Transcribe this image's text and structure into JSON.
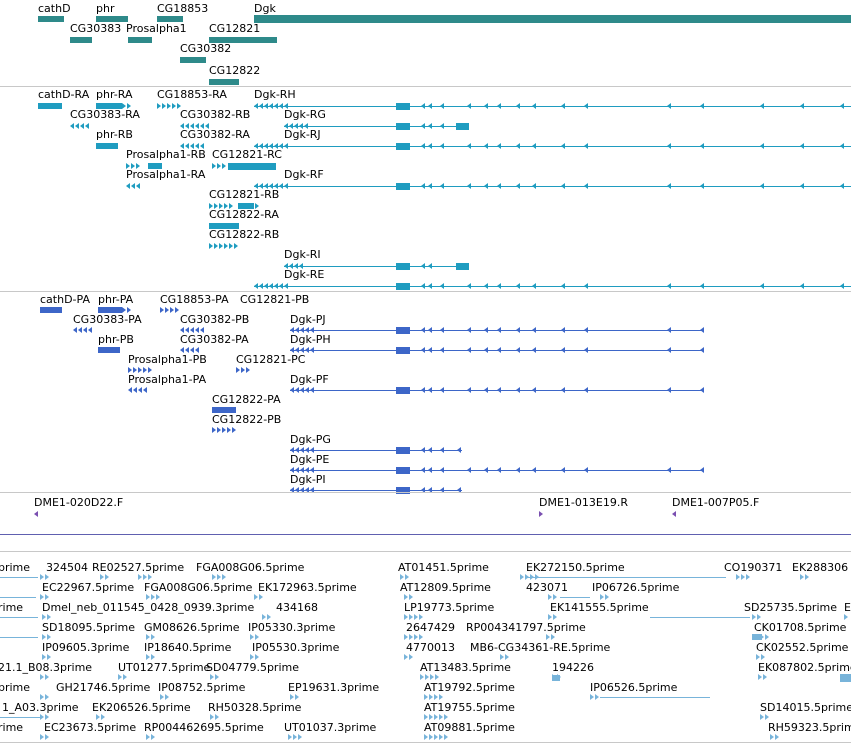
{
  "colors": {
    "gene": "#2e8a8a",
    "transcript": "#1f9cc0",
    "protein": "#3d66c8",
    "clone": "#7a4fb0",
    "est": "#78b4da",
    "separator": "#c8c8c8",
    "divider": "#6060b0"
  },
  "gene_track": {
    "labels": [
      "cathD",
      "phr",
      "CG18853",
      "Dgk",
      "CG30383",
      "Prosalpha1",
      "CG12821",
      "CG30382",
      "CG12822"
    ]
  },
  "transcript_track": {
    "labels": [
      "cathD-RA",
      "phr-RA",
      "CG18853-RA",
      "Dgk-RH",
      "CG30383-RA",
      "CG30382-RB",
      "Dgk-RG",
      "phr-RB",
      "CG30382-RA",
      "Dgk-RJ",
      "Prosalpha1-RB",
      "CG12821-RC",
      "Prosalpha1-RA",
      "Dgk-RF",
      "CG12821-RB",
      "CG12822-RA",
      "CG12822-RB",
      "Dgk-RI",
      "Dgk-RE"
    ]
  },
  "protein_track": {
    "labels": [
      "cathD-PA",
      "phr-PA",
      "CG18853-PA",
      "CG12821-PB",
      "CG30383-PA",
      "CG30382-PB",
      "Dgk-PJ",
      "phr-PB",
      "CG30382-PA",
      "Dgk-PH",
      "Prosalpha1-PB",
      "CG12821-PC",
      "Prosalpha1-PA",
      "Dgk-PF",
      "CG12822-PA",
      "CG12822-PB",
      "Dgk-PG",
      "Dgk-PE",
      "Dgk-PI"
    ]
  },
  "clone_track": {
    "labels": [
      "DME1-020D22.F",
      "DME1-013E19.R",
      "DME1-007P05.F"
    ]
  },
  "est_track": {
    "labels": [
      "prime",
      "324504",
      "RE02527.5prime",
      "FGA008G06.5prime",
      "AT01451.5prime",
      "EK272150.5prime",
      "CO190371",
      "EK288306",
      "EC22967.5prime",
      "FGA008G06.5prime",
      "EK172963.5prime",
      "AT12809.5prime",
      "423071",
      "IP06726.5prime",
      "rime",
      "Dmel_neb_011545_0428_0939.3prime",
      "434168",
      "LP19773.5prime",
      "EK141555.5prime",
      "SD25735.5prime",
      "E",
      "SD18095.5prime",
      "GM08626.5prime",
      "IP05330.3prime",
      "2647429",
      "RP004341797.5prime",
      "CK01708.5prime",
      "IP09605.3prime",
      "IP18640.5prime",
      "IP05530.3prime",
      "4770013",
      "MB6-CG34361-RE.5prime",
      "CK02552.5prime",
      "21.1_B08.3prime",
      "UT01277.5prime",
      "SD04779.5prime",
      "AT13483.5prime",
      "194226",
      "EK087802.5prime",
      "prime",
      "GH21746.5prime",
      "IP08752.5prime",
      "EP19631.3prime",
      "AT19792.5prime",
      "IP06526.5prime",
      "1_A03.3prime",
      "EK206526.5prime",
      "RH50328.5prime",
      "AT19755.5prime",
      "SD14015.5prime",
      "rime",
      "EC23673.5prime",
      "RP004462695.5prime",
      "UT01037.3prime",
      "AT09881.5prime",
      "RH59323.5prime"
    ]
  }
}
